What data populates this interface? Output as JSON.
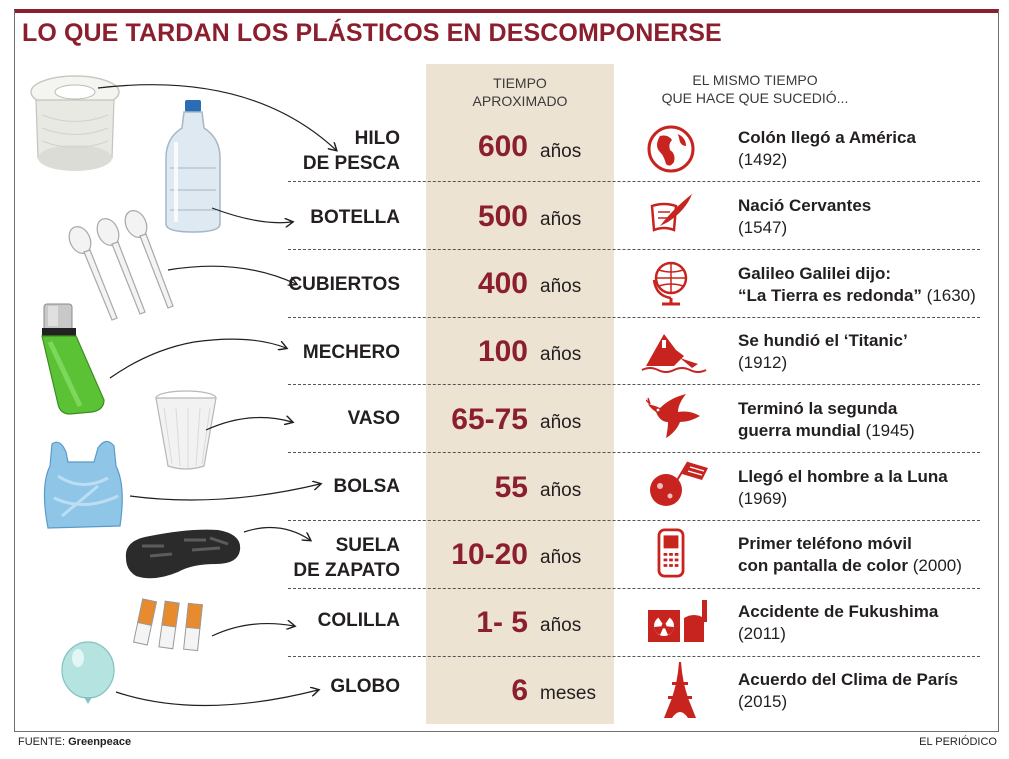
{
  "title": "LO QUE TARDAN LOS PLÁSTICOS EN DESCOMPONERSE",
  "headers": {
    "time_line1": "TIEMPO",
    "time_line2": "APROXIMADO",
    "same_line1": "EL MISMO TIEMPO",
    "same_line2": "QUE HACE QUE SUCEDIÓ..."
  },
  "rows": [
    {
      "label_line1": "HILO",
      "label_line2": "DE PESCA",
      "value": "600",
      "unit": "años",
      "event_line1": "Colón llegó a América",
      "event_line2_bold": "",
      "event_line2": "(1492)",
      "icon": "globe-americas-icon",
      "item_icon": "fishing-line-spool-icon"
    },
    {
      "label_line1": "BOTELLA",
      "label_line2": "",
      "value": "500",
      "unit": "años",
      "event_line1": "Nació Cervantes",
      "event_line2_bold": "",
      "event_line2": "(1547)",
      "icon": "quill-scroll-icon",
      "item_icon": "plastic-bottle-icon"
    },
    {
      "label_line1": "CUBIERTOS",
      "label_line2": "",
      "value": "400",
      "unit": "años",
      "event_line1": "Galileo Galilei dijo:",
      "event_line2_bold": "“La Tierra es redonda”",
      "event_line2": " (1630)",
      "icon": "globe-stand-icon",
      "item_icon": "plastic-spoons-icon"
    },
    {
      "label_line1": "MECHERO",
      "label_line2": "",
      "value": "100",
      "unit": "años",
      "event_line1": "Se hundió el ‘Titanic’",
      "event_line2_bold": "",
      "event_line2": "(1912)",
      "icon": "sinking-ship-icon",
      "item_icon": "lighter-icon"
    },
    {
      "label_line1": "VASO",
      "label_line2": "",
      "value": "65-75",
      "unit": "años",
      "event_line1": "Terminó la segunda",
      "event_line2_bold": "guerra mundial",
      "event_line2": " (1945)",
      "icon": "peace-dove-icon",
      "item_icon": "plastic-cup-icon"
    },
    {
      "label_line1": "BOLSA",
      "label_line2": "",
      "value": "55",
      "unit": "años",
      "event_line1": "Llegó el hombre a la Luna",
      "event_line2_bold": "",
      "event_line2": "(1969)",
      "icon": "moon-flag-icon",
      "item_icon": "plastic-bag-icon"
    },
    {
      "label_line1": "SUELA",
      "label_line2": "DE ZAPATO",
      "value": "10-20",
      "unit": "años",
      "event_line1": "Primer teléfono móvil",
      "event_line2_bold": "con pantalla de color",
      "event_line2": " (2000)",
      "icon": "mobile-phone-icon",
      "item_icon": "shoe-sole-icon"
    },
    {
      "label_line1": "COLILLA",
      "label_line2": "",
      "value": "1- 5",
      "unit": "años",
      "event_line1": "Accidente de Fukushima",
      "event_line2_bold": "",
      "event_line2": "(2011)",
      "icon": "nuclear-plant-icon",
      "item_icon": "cigarette-butts-icon"
    },
    {
      "label_line1": "GLOBO",
      "label_line2": "",
      "value": "6",
      "unit": "meses",
      "event_line1": "Acuerdo del Clima de París",
      "event_line2_bold": "",
      "event_line2": "(2015)",
      "icon": "eiffel-tower-icon",
      "item_icon": "balloon-icon"
    }
  ],
  "footer": {
    "source_label": "FUENTE:",
    "source_name": "Greenpeace",
    "publisher": "EL PERIÓDICO"
  },
  "colors": {
    "accent": "#8b1f2e",
    "icon_red": "#c8241f",
    "band": "#ede3d3"
  }
}
